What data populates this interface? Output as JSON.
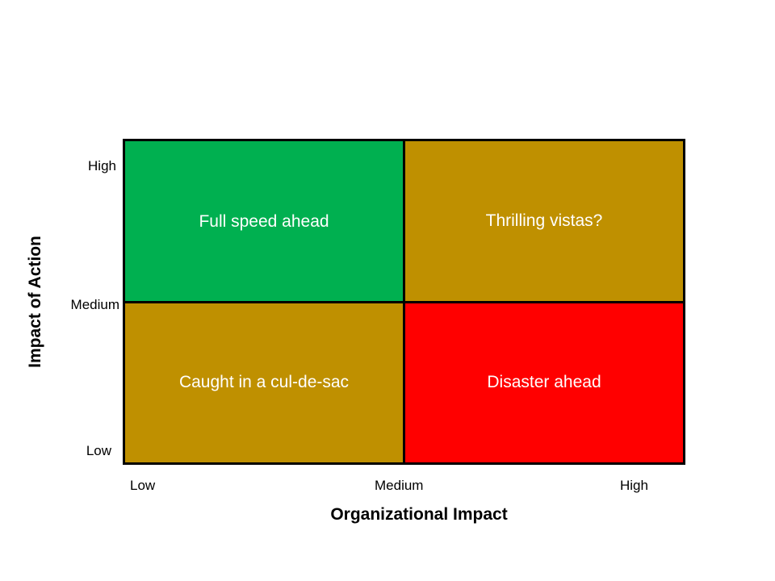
{
  "quadrants": {
    "top_left": {
      "label": "Full speed ahead",
      "color": "#00B050"
    },
    "top_right": {
      "label": "Thrilling vistas?",
      "color": "#BF9000"
    },
    "bottom_left": {
      "label": "Caught in a cul-de-sac",
      "color": "#BF9000"
    },
    "bottom_right": {
      "label": "Disaster ahead",
      "color": "#FF0000"
    }
  },
  "y_axis": {
    "title": "Impact of Action",
    "ticks": [
      "High",
      "Medium",
      "Low"
    ]
  },
  "x_axis": {
    "title": "Organizational Impact",
    "ticks": [
      "Low",
      "Medium",
      "High"
    ]
  }
}
